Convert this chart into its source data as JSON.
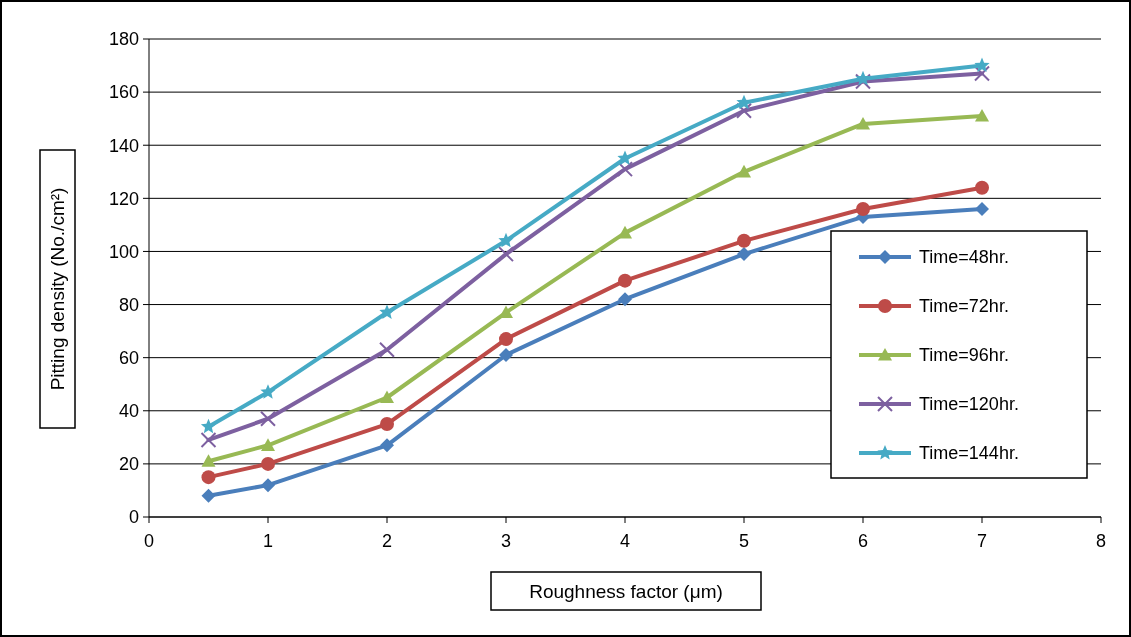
{
  "chart_data": {
    "type": "line",
    "xlabel": "Roughness factor (μm)",
    "ylabel": "Pitting density (No./cm²)",
    "xlim": [
      0,
      8
    ],
    "xticks": [
      0,
      1,
      2,
      3,
      4,
      5,
      6,
      7,
      8
    ],
    "ylim": [
      0,
      180
    ],
    "yticks": [
      0,
      20,
      40,
      60,
      80,
      100,
      120,
      140,
      160,
      180
    ],
    "grid": "y",
    "legend": "right",
    "line_style": "solid",
    "x": [
      0.5,
      1,
      2,
      3,
      4,
      5,
      6,
      7
    ],
    "series": [
      {
        "name": "Time=48hr.",
        "color": "#4a7ebb",
        "marker": "diamond",
        "values": [
          8,
          12,
          27,
          61,
          82,
          99,
          113,
          116
        ]
      },
      {
        "name": "Time=72hr.",
        "color": "#be4b48",
        "marker": "circle",
        "values": [
          15,
          20,
          35,
          67,
          89,
          104,
          116,
          124
        ]
      },
      {
        "name": "Time=96hr.",
        "color": "#98b954",
        "marker": "triangle",
        "values": [
          21,
          27,
          45,
          77,
          107,
          130,
          148,
          151
        ]
      },
      {
        "name": "Time=120hr.",
        "color": "#7d60a0",
        "marker": "cross",
        "values": [
          29,
          37,
          63,
          99,
          131,
          153,
          164,
          167
        ]
      },
      {
        "name": "Time=144hr.",
        "color": "#46aac5",
        "marker": "star",
        "values": [
          34,
          47,
          77,
          104,
          135,
          156,
          165,
          170
        ]
      }
    ]
  }
}
